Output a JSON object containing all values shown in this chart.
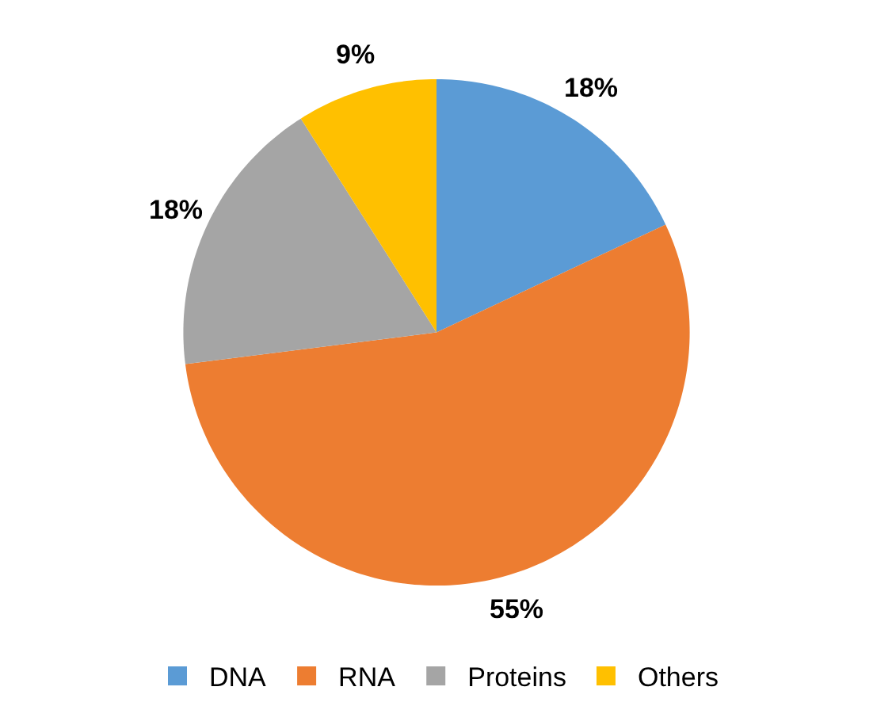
{
  "chart_data": {
    "type": "pie",
    "categories": [
      "DNA",
      "RNA",
      "Proteins",
      "Others"
    ],
    "values": [
      18,
      55,
      18,
      9
    ],
    "colors": [
      "#5b9bd5",
      "#ed7d31",
      "#a5a5a5",
      "#ffc000"
    ],
    "value_labels": [
      "18%",
      "55%",
      "18%",
      "9%"
    ],
    "legend": "bottom"
  }
}
